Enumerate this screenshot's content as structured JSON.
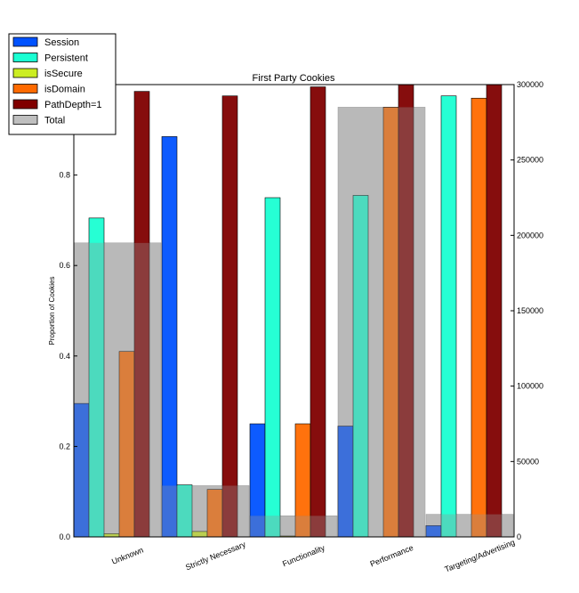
{
  "chart_data": {
    "type": "bar",
    "title": "First Party Cookies",
    "ylabel": "Proportion of Cookies",
    "xlabel": "",
    "ylim": [
      0,
      1.0
    ],
    "y2lim": [
      0,
      300000
    ],
    "yticks": [
      "0.0",
      "0.2",
      "0.4",
      "0.6",
      "0.8"
    ],
    "y2ticks": [
      "0",
      "50000",
      "100000",
      "150000",
      "200000",
      "250000",
      "300000"
    ],
    "categories": [
      "Unknown",
      "Strictly Necessary",
      "Functionality",
      "Performance",
      "Targeting/Advertising"
    ],
    "series": [
      {
        "name": "Session",
        "color": "#0052ff",
        "values": [
          0.295,
          0.885,
          0.25,
          0.245,
          0.025
        ]
      },
      {
        "name": "Persistent",
        "color": "#1affd2",
        "values": [
          0.705,
          0.115,
          0.75,
          0.755,
          0.975
        ]
      },
      {
        "name": "isSecure",
        "color": "#ccee22",
        "values": [
          0.007,
          0.012,
          0.002,
          0.0,
          0.0
        ]
      },
      {
        "name": "isDomain",
        "color": "#ff6a00",
        "values": [
          0.41,
          0.105,
          0.25,
          0.95,
          0.97
        ]
      },
      {
        "name": "PathDepth=1",
        "color": "#800000",
        "values": [
          0.985,
          0.975,
          0.995,
          1.0,
          1.0
        ]
      }
    ],
    "total": {
      "name": "Total",
      "color": "#bfbfbf",
      "axis": "right",
      "values": [
        195000,
        34000,
        14000,
        285000,
        15000
      ]
    },
    "legend": "top-left",
    "grid": false
  }
}
